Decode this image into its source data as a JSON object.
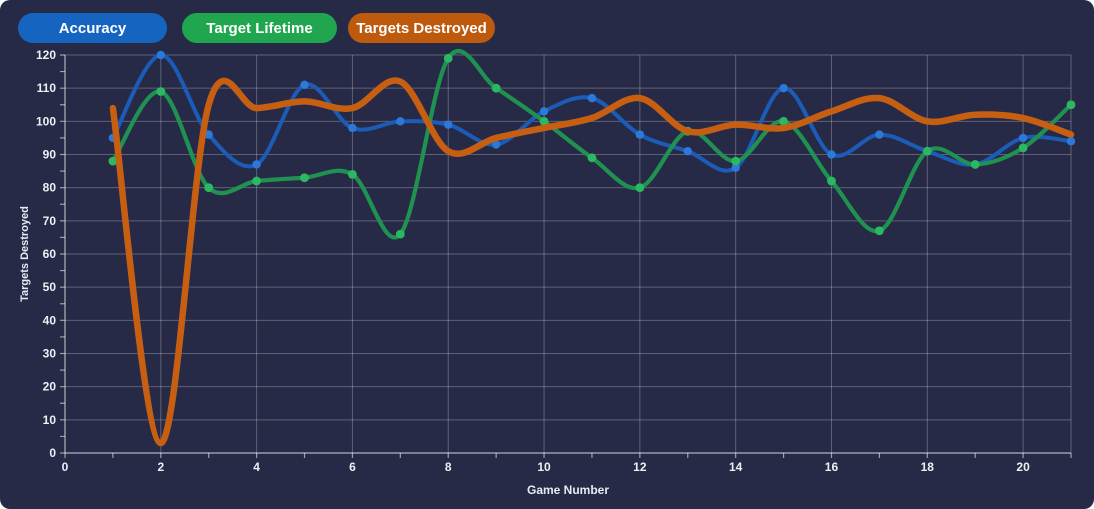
{
  "page": {
    "background": "#272a46"
  },
  "legend": {
    "items": [
      {
        "label": "Accuracy",
        "color": "#1565c0"
      },
      {
        "label": "Target Lifetime",
        "color": "#1fa64e"
      },
      {
        "label": "Targets Destroyed",
        "color": "#bd5a0d"
      }
    ]
  },
  "chart_data": {
    "type": "line",
    "title": "",
    "xlabel": "Game Number",
    "ylabel": "Targets Destroyed",
    "xlim": [
      0,
      21
    ],
    "ylim": [
      0,
      120
    ],
    "xticks": [
      0,
      2,
      4,
      6,
      8,
      10,
      12,
      14,
      16,
      18,
      20
    ],
    "yticks": [
      0,
      10,
      20,
      30,
      40,
      50,
      60,
      70,
      80,
      90,
      100,
      110,
      120
    ],
    "minor_tick_step_x": 1,
    "minor_tick_step_y": 5,
    "grid": true,
    "smooth": true,
    "legend_position": "top-left",
    "grid_color": "rgba(255,255,255,0.26)",
    "axis_color": "rgba(255,255,255,0.55)",
    "tick_label_color": "#eef0f6",
    "x": [
      1,
      2,
      3,
      4,
      5,
      6,
      7,
      8,
      9,
      10,
      11,
      12,
      13,
      14,
      15,
      16,
      17,
      18,
      19,
      20,
      21
    ],
    "series": [
      {
        "name": "Accuracy",
        "line_color": "#1b5cb8",
        "point_color": "#2b79da",
        "line_width": 4,
        "point_radius": 4.2,
        "show_points": true,
        "values": [
          95,
          120,
          96,
          87,
          111,
          98,
          100,
          99,
          93,
          103,
          107,
          96,
          91,
          86,
          110,
          90,
          96,
          91,
          87,
          95,
          94
        ]
      },
      {
        "name": "Target Lifetime",
        "line_color": "#1f9150",
        "point_color": "#2cb862",
        "line_width": 4.2,
        "point_radius": 4.4,
        "show_points": true,
        "values": [
          88,
          109,
          80,
          82,
          83,
          84,
          66,
          119,
          110,
          100,
          89,
          80,
          97,
          88,
          100,
          82,
          67,
          91,
          87,
          92,
          105
        ]
      },
      {
        "name": "Targets Destroyed",
        "line_color": "#c65f12",
        "point_color": "#c65f12",
        "line_width": 6.5,
        "point_radius": 0,
        "show_points": false,
        "values": [
          104,
          3,
          105,
          104,
          106,
          104,
          112,
          91,
          95,
          98,
          101,
          107,
          97,
          99,
          98,
          103,
          107,
          100,
          102,
          101,
          96
        ]
      }
    ]
  }
}
